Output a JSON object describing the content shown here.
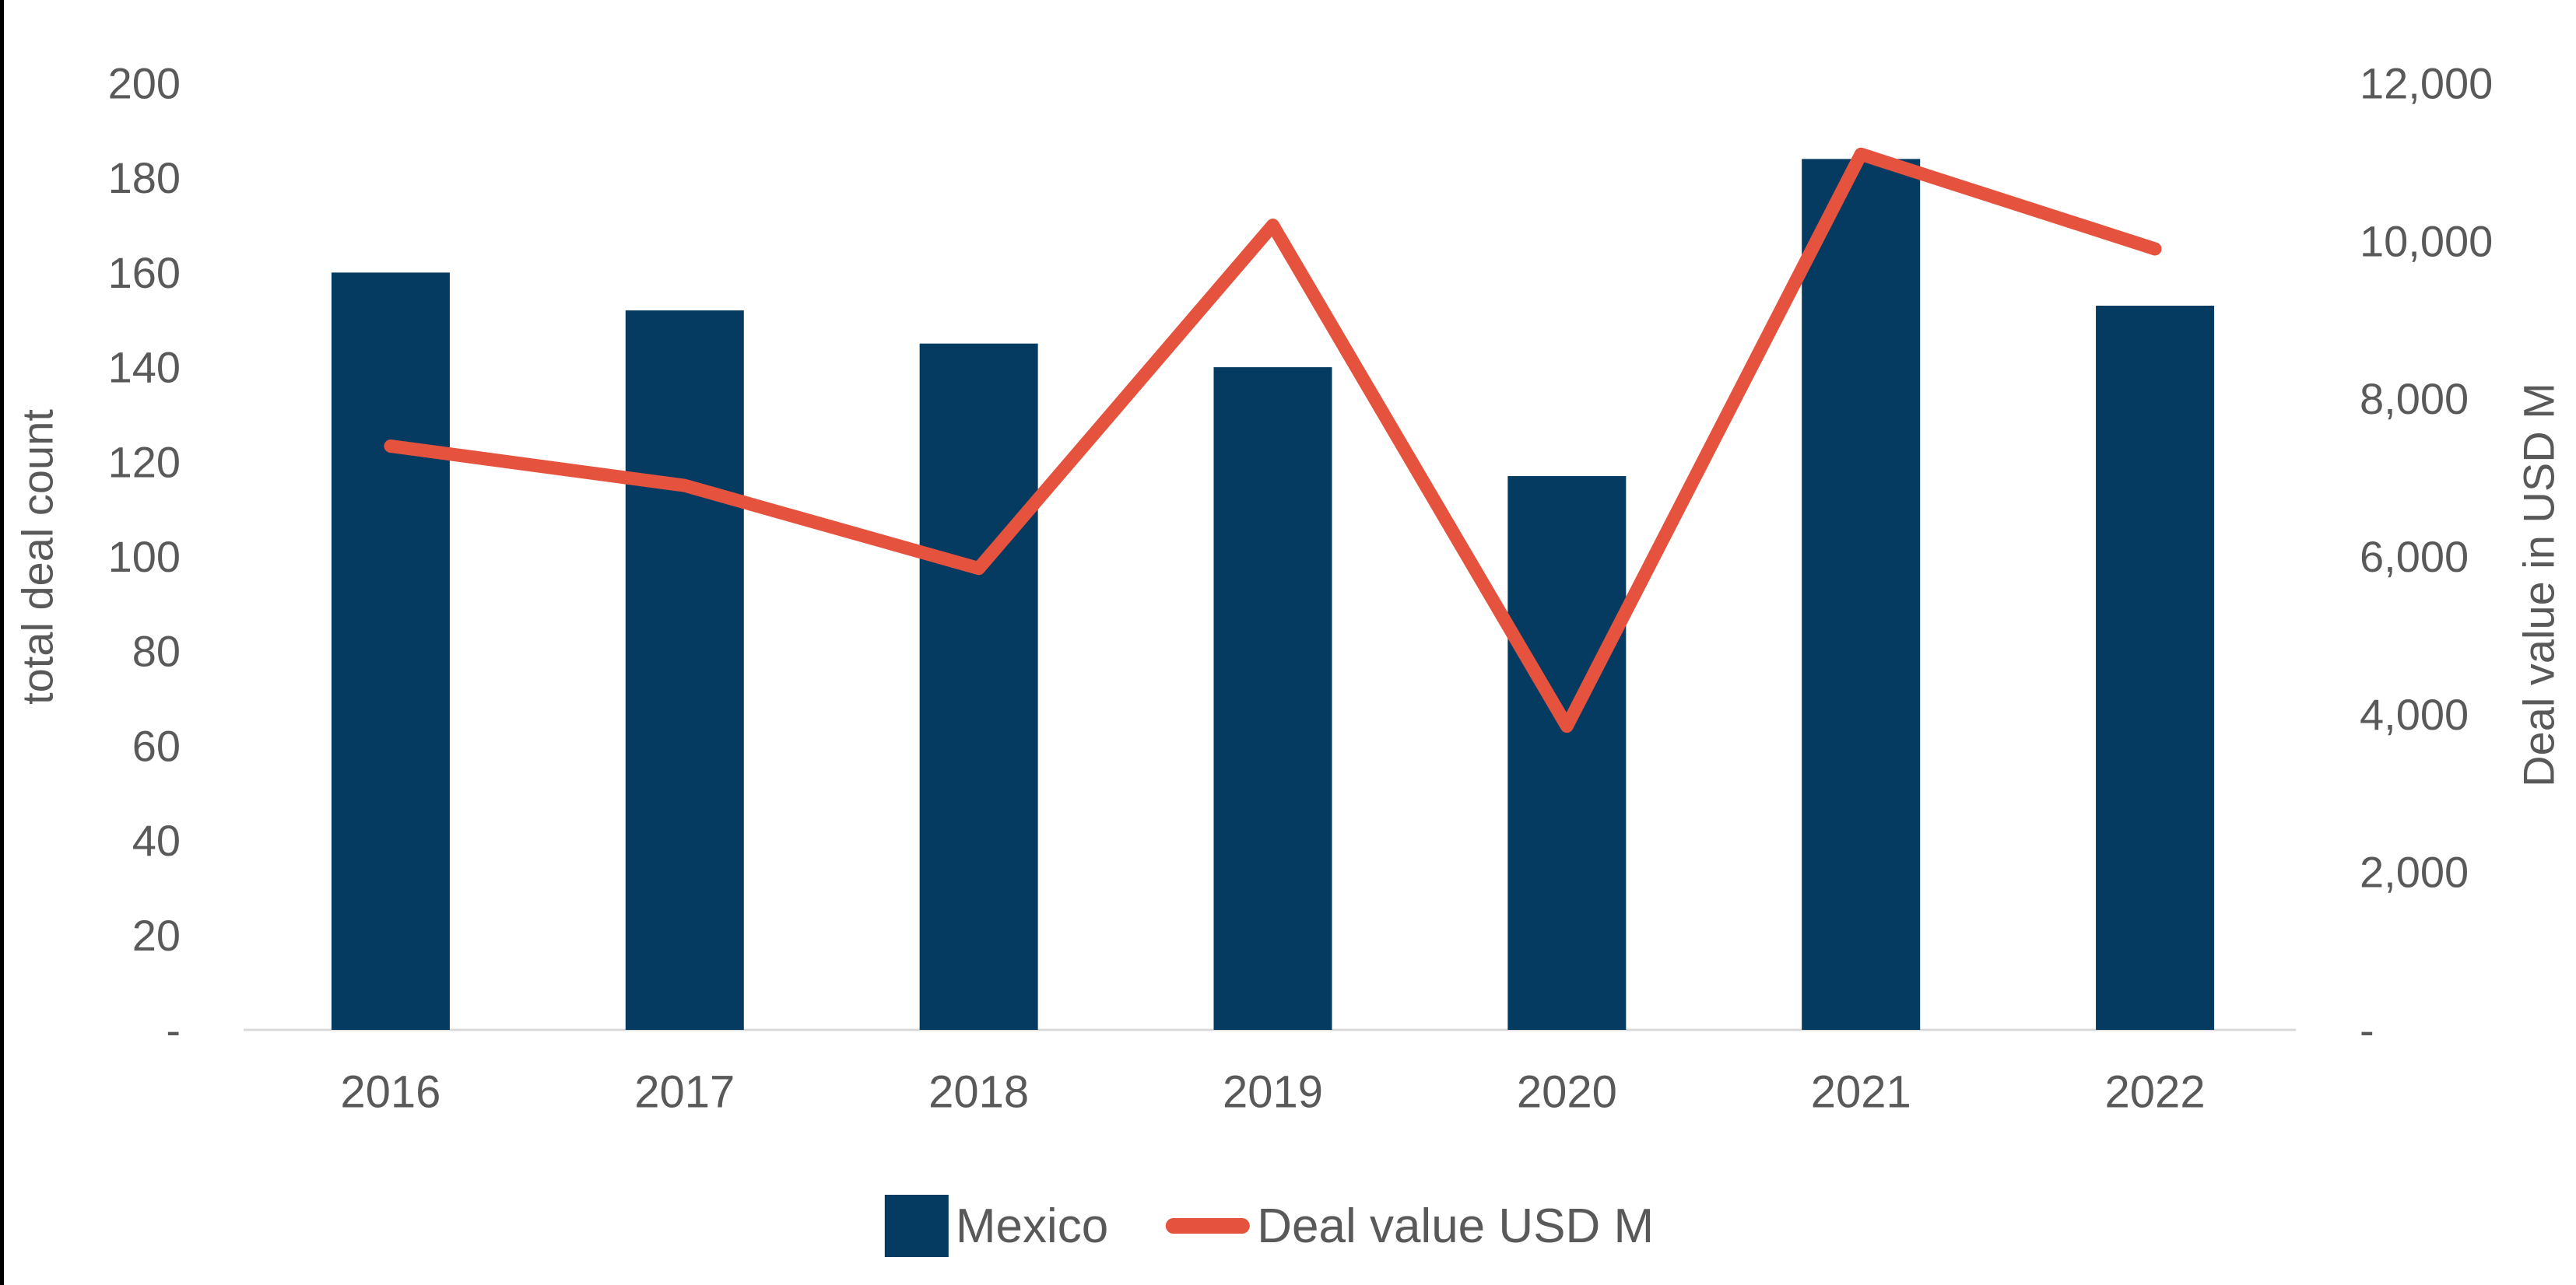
{
  "chart_data": {
    "type": "bar",
    "subtype": "combo-bar-line",
    "categories": [
      "2016",
      "2017",
      "2018",
      "2019",
      "2020",
      "2021",
      "2022"
    ],
    "series": [
      {
        "name": "Mexico",
        "type": "bar",
        "axis": "left",
        "color": "#053a61",
        "values": [
          160,
          152,
          145,
          140,
          117,
          184,
          153
        ]
      },
      {
        "name": "Deal value USD M",
        "type": "line",
        "axis": "right",
        "color": "#e5523d",
        "values": [
          7400,
          6900,
          5850,
          10200,
          3850,
          11100,
          9900
        ]
      }
    ],
    "left_axis": {
      "title": "total deal count",
      "min": 0,
      "max": 200,
      "step": 20,
      "zero_label": "-",
      "thousands": false
    },
    "right_axis": {
      "title": "Deal value in USD M",
      "min": 0,
      "max": 12000,
      "step": 2000,
      "zero_label": "-",
      "thousands": true
    },
    "legend": [
      {
        "label": "Mexico",
        "swatch": "square",
        "color": "#053a61"
      },
      {
        "label": "Deal value USD M",
        "swatch": "line",
        "color": "#e5523d"
      }
    ],
    "grid": "off",
    "legend_position": "bottom",
    "colors": {
      "tick_text": "#595959",
      "axis_line": "#d9d9d9",
      "background": "#ffffff"
    }
  }
}
